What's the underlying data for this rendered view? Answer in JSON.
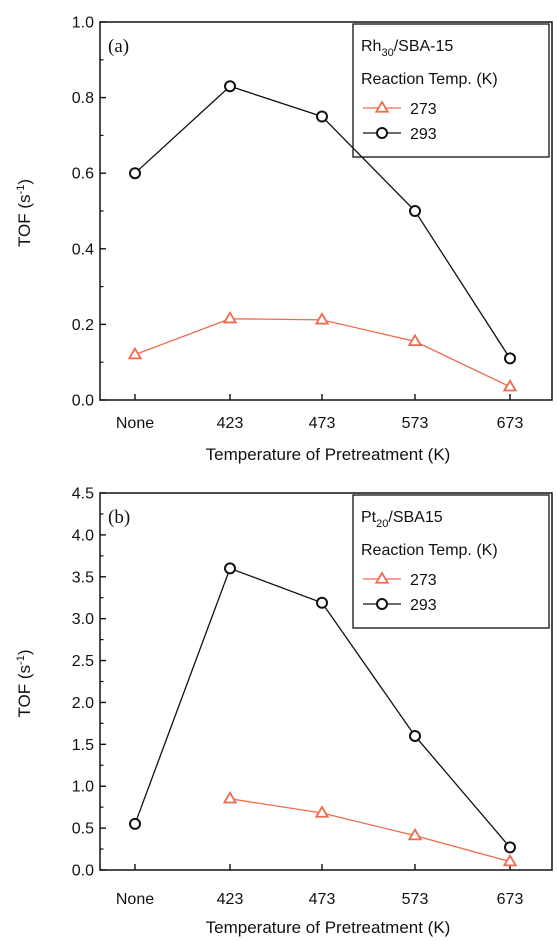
{
  "chart_data": [
    {
      "type": "line",
      "panel_label": "(a)",
      "categories": [
        "None",
        "423",
        "473",
        "573",
        "673"
      ],
      "xlabel": "Temperature of Pretreatment (K)",
      "ylabel": "TOF (s-1)",
      "ylabel_main": "TOF (s",
      "ylabel_sup": "-1",
      "ylabel_close": ")",
      "ylim": [
        0.0,
        1.0
      ],
      "yticks": [
        0.0,
        0.2,
        0.4,
        0.6,
        0.8,
        1.0
      ],
      "ytick_labels": [
        "0.0",
        "0.2",
        "0.4",
        "0.6",
        "0.8",
        "1.0"
      ],
      "legend": {
        "catalyst_base": "Rh",
        "catalyst_sub": "30",
        "catalyst_rest": "/SBA-15",
        "title": "Reaction Temp. (K)",
        "placement": "top-right"
      },
      "series": [
        {
          "name": "273",
          "marker": "triangle",
          "color": "#ef6a4c",
          "values": [
            0.12,
            0.215,
            0.212,
            0.155,
            0.035
          ]
        },
        {
          "name": "293",
          "marker": "circle",
          "color": "#111111",
          "values": [
            0.6,
            0.83,
            0.75,
            0.5,
            0.11
          ]
        }
      ]
    },
    {
      "type": "line",
      "panel_label": "(b)",
      "categories": [
        "None",
        "423",
        "473",
        "573",
        "673"
      ],
      "xlabel": "Temperature of Pretreatment (K)",
      "ylabel": "TOF (s-1)",
      "ylabel_main": "TOF (s",
      "ylabel_sup": "-1",
      "ylabel_close": ")",
      "ylim": [
        0.0,
        4.5
      ],
      "yticks": [
        0.0,
        0.5,
        1.0,
        1.5,
        2.0,
        2.5,
        3.0,
        3.5,
        4.0,
        4.5
      ],
      "ytick_labels": [
        "0.0",
        "0.5",
        "1.0",
        "1.5",
        "2.0",
        "2.5",
        "3.0",
        "3.5",
        "4.0",
        "4.5"
      ],
      "legend": {
        "catalyst_base": "Pt",
        "catalyst_sub": "20",
        "catalyst_rest": "/SBA15",
        "title": "Reaction Temp. (K)",
        "placement": "top-right"
      },
      "series": [
        {
          "name": "273",
          "marker": "triangle",
          "color": "#ef6a4c",
          "values": [
            null,
            0.85,
            0.68,
            0.41,
            0.1
          ]
        },
        {
          "name": "293",
          "marker": "circle",
          "color": "#111111",
          "values": [
            0.55,
            3.6,
            3.19,
            1.6,
            0.27
          ]
        }
      ]
    }
  ]
}
